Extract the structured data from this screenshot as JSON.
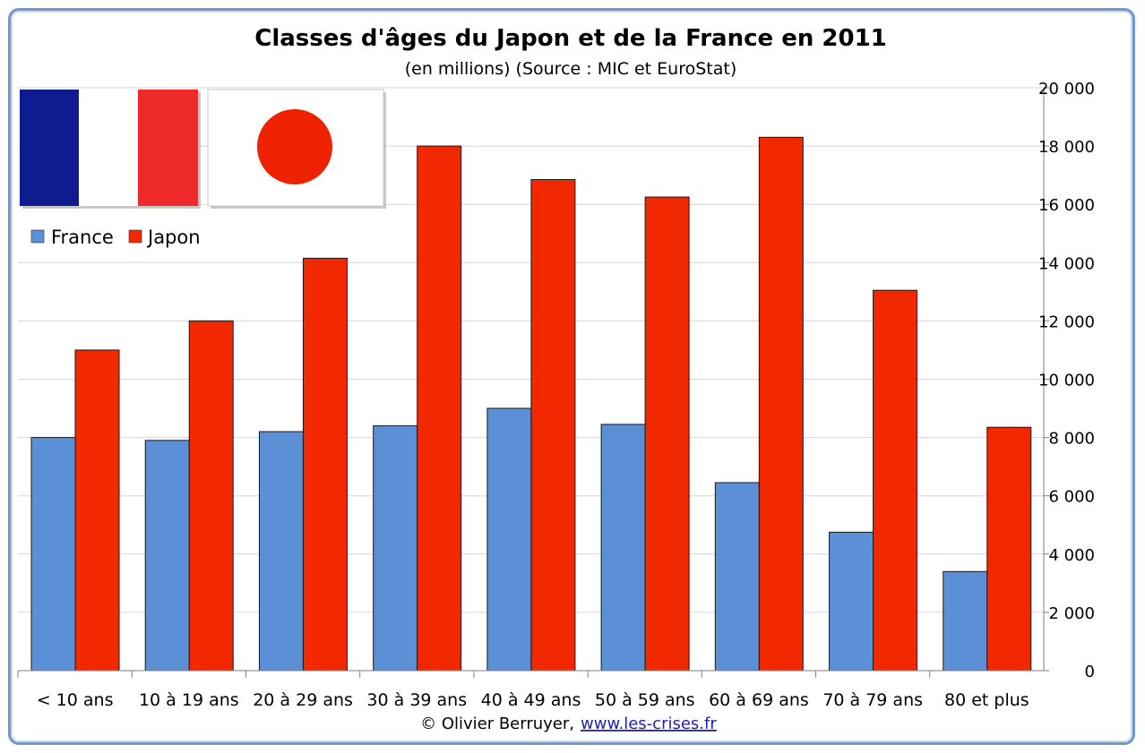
{
  "chart_data": {
    "type": "bar",
    "title": "Classes d'âges du Japon et de la France en 2011",
    "subtitle": "(en millions) (Source : MIC et EuroStat)",
    "categories": [
      "< 10 ans",
      "10 à 19 ans",
      "20 à 29 ans",
      "30 à 39 ans",
      "40 à 49 ans",
      "50 à 59 ans",
      "60 à 69 ans",
      "70 à 79 ans",
      "80 et plus"
    ],
    "series": [
      {
        "name": "France",
        "color": "#5b8fd6",
        "values": [
          8000,
          7900,
          8200,
          8400,
          9000,
          8450,
          6450,
          4750,
          3400
        ]
      },
      {
        "name": "Japon",
        "color": "#f22800",
        "values": [
          11000,
          12000,
          14150,
          18000,
          16850,
          16250,
          18300,
          13050,
          8350
        ]
      }
    ],
    "xlabel": "",
    "ylabel": "",
    "ylim": [
      0,
      20000
    ],
    "yticks": [
      0,
      2000,
      4000,
      6000,
      8000,
      10000,
      12000,
      14000,
      16000,
      18000,
      20000
    ],
    "ytick_labels": [
      "0",
      "2 000",
      "4 000",
      "6 000",
      "8 000",
      "10 000",
      "12 000",
      "14 000",
      "16 000",
      "18 000",
      "20 000"
    ],
    "yaxis_side": "right",
    "grid": true,
    "legend_position": "top-left"
  },
  "flags": {
    "france_colors": [
      "#0f1c8f",
      "#ffffff",
      "#ee2a2a"
    ],
    "japan_colors": [
      "#ffffff",
      "#ee2200"
    ]
  },
  "footer": {
    "credit": "© Olivier Berruyer,",
    "link": "www.les-crises.fr"
  }
}
